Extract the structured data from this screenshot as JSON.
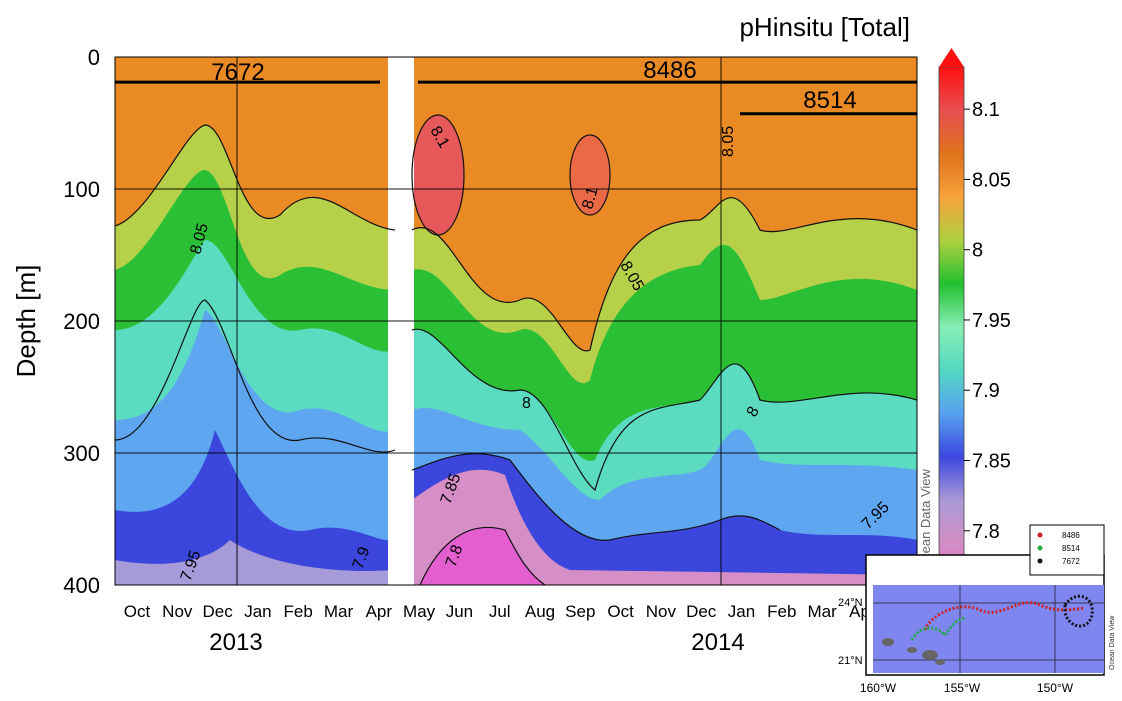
{
  "chart_data": {
    "type": "heatmap",
    "title": "pHinsitu [Total]",
    "ylabel": "Depth [m]",
    "ylim": [
      400,
      0
    ],
    "y_ticks": [
      0,
      100,
      200,
      300,
      400
    ],
    "x_months": [
      "Oct",
      "Nov",
      "Dec",
      "Jan",
      "Feb",
      "Mar",
      "Apr",
      "May",
      "Jun",
      "Jul",
      "Aug",
      "Sep",
      "Oct",
      "Nov",
      "Dec",
      "Jan",
      "Feb",
      "Mar",
      "Apr"
    ],
    "x_years": [
      "2013",
      "2014"
    ],
    "floats": [
      {
        "label": "7672",
        "period": [
          "Oct 2013",
          "Apr 2014"
        ],
        "depth_m": 19
      },
      {
        "label": "8486",
        "period": [
          "May 2014",
          "Apr 2015"
        ],
        "depth_m": 19
      },
      {
        "label": "8514",
        "period": [
          "Jan 2015",
          "Apr 2015"
        ],
        "depth_m": 43
      }
    ],
    "colorbar": {
      "ticks": [
        "8.1",
        "8.05",
        "8",
        "7.95",
        "7.9",
        "7.85",
        "7.8"
      ],
      "range": [
        7.76,
        8.13
      ],
      "colors": [
        "#e85fd0",
        "#d28ec4",
        "#aa9ad6",
        "#3c47e0",
        "#58a0f0",
        "#52d8c2",
        "#88eeb4",
        "#22c030",
        "#b0d040",
        "#f7a23b",
        "#e0721c",
        "#e84e50",
        "#ff1010"
      ]
    },
    "contour_labels": [
      "8.1",
      "8.1",
      "8.05",
      "8.05",
      "8.05",
      "8",
      "8",
      "7.95",
      "7.95",
      "7.9",
      "7.85",
      "7.8"
    ],
    "watermark": "Ocean Data View",
    "inset_map": {
      "lat_labels": [
        "24°N",
        "21°N"
      ],
      "lon_labels": [
        "160°W",
        "155°W",
        "150°W"
      ],
      "legend": [
        {
          "label": "8486",
          "color": "#cc2222"
        },
        {
          "label": "8514",
          "color": "#22aa44"
        },
        {
          "label": "7672",
          "color": "#111111"
        }
      ],
      "watermark": "Ocean Data View"
    }
  }
}
